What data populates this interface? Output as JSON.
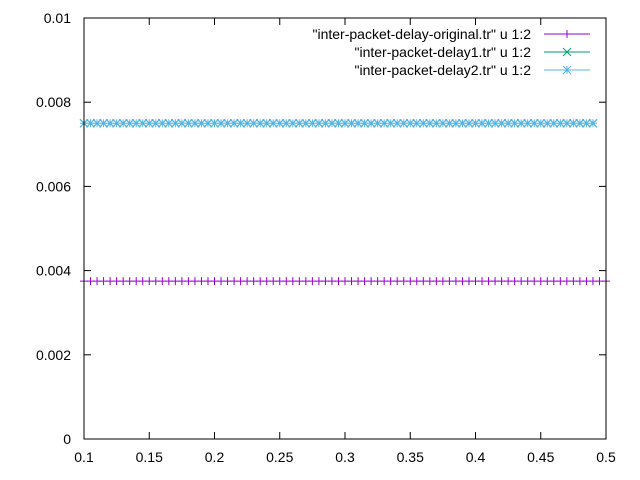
{
  "chart_data": {
    "type": "scatter",
    "title": "",
    "xlabel": "",
    "ylabel": "",
    "xlim": [
      0.1,
      0.5
    ],
    "ylim": [
      0,
      0.01
    ],
    "grid": false,
    "legend_position": "top-right",
    "xticks": [
      "0.1",
      "0.15",
      "0.2",
      "0.25",
      "0.3",
      "0.35",
      "0.4",
      "0.45",
      "0.5"
    ],
    "yticks": [
      "0",
      "0.002",
      "0.004",
      "0.006",
      "0.008",
      "0.01"
    ],
    "series": [
      {
        "name": "\"inter-packet-delay-original.tr\" u 1:2",
        "marker": "plus",
        "color": "#9400d3",
        "x_start": 0.1,
        "x_end": 0.5,
        "x_step": 0.005,
        "y": 0.00375
      },
      {
        "name": "\"inter-packet-delay1.tr\" u 1:2",
        "marker": "cross",
        "color": "#009e73",
        "x_start": 0.1,
        "x_end": 0.49,
        "x_step": 0.005,
        "y": 0.0075
      },
      {
        "name": "\"inter-packet-delay2.tr\" u 1:2",
        "marker": "star",
        "color": "#56b4e9",
        "x_start": 0.1,
        "x_end": 0.49,
        "x_step": 0.005,
        "y": 0.0075
      }
    ]
  }
}
